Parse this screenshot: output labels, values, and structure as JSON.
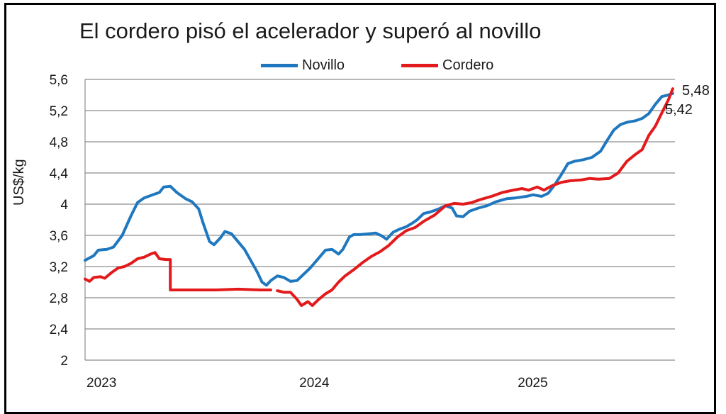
{
  "chart_data": {
    "type": "line",
    "title": "El cordero pisó el acelerador y superó al novillo",
    "ylabel": "US$/kg",
    "xlabel": "",
    "ylim": [
      2,
      5.6
    ],
    "yticks": [
      "5,6",
      "5,2",
      "4,8",
      "4,4",
      "4",
      "3,6",
      "3,2",
      "2,8",
      "2,4",
      "2"
    ],
    "xticks": [
      "2023",
      "2024",
      "2025"
    ],
    "xlim": [
      2023.0,
      2025.7
    ],
    "grid": "horizontal",
    "legend_position": "top",
    "series": [
      {
        "name": "Novillo",
        "color": "#1f78bf",
        "points": [
          [
            2023.0,
            3.28
          ],
          [
            2023.04,
            3.34
          ],
          [
            2023.06,
            3.41
          ],
          [
            2023.1,
            3.42
          ],
          [
            2023.13,
            3.45
          ],
          [
            2023.17,
            3.6
          ],
          [
            2023.21,
            3.85
          ],
          [
            2023.24,
            4.02
          ],
          [
            2023.27,
            4.08
          ],
          [
            2023.31,
            4.12
          ],
          [
            2023.34,
            4.15
          ],
          [
            2023.36,
            4.22
          ],
          [
            2023.39,
            4.23
          ],
          [
            2023.42,
            4.15
          ],
          [
            2023.46,
            4.07
          ],
          [
            2023.49,
            4.03
          ],
          [
            2023.52,
            3.94
          ],
          [
            2023.54,
            3.76
          ],
          [
            2023.57,
            3.52
          ],
          [
            2023.59,
            3.48
          ],
          [
            2023.62,
            3.57
          ],
          [
            2023.64,
            3.65
          ],
          [
            2023.67,
            3.62
          ],
          [
            2023.7,
            3.52
          ],
          [
            2023.73,
            3.42
          ],
          [
            2023.76,
            3.27
          ],
          [
            2023.79,
            3.12
          ],
          [
            2023.81,
            3.0
          ],
          [
            2023.83,
            2.96
          ],
          [
            2023.85,
            3.02
          ],
          [
            2023.88,
            3.08
          ],
          [
            2023.91,
            3.06
          ],
          [
            2023.94,
            3.01
          ],
          [
            2023.97,
            3.02
          ],
          [
            2024.0,
            3.1
          ],
          [
            2024.03,
            3.18
          ],
          [
            2024.07,
            3.31
          ],
          [
            2024.1,
            3.41
          ],
          [
            2024.13,
            3.42
          ],
          [
            2024.16,
            3.36
          ],
          [
            2024.18,
            3.42
          ],
          [
            2024.21,
            3.58
          ],
          [
            2024.23,
            3.61
          ],
          [
            2024.26,
            3.61
          ],
          [
            2024.3,
            3.62
          ],
          [
            2024.33,
            3.63
          ],
          [
            2024.36,
            3.59
          ],
          [
            2024.38,
            3.55
          ],
          [
            2024.41,
            3.64
          ],
          [
            2024.44,
            3.68
          ],
          [
            2024.47,
            3.71
          ],
          [
            2024.5,
            3.76
          ],
          [
            2024.52,
            3.8
          ],
          [
            2024.55,
            3.88
          ],
          [
            2024.58,
            3.9
          ],
          [
            2024.62,
            3.94
          ],
          [
            2024.65,
            3.98
          ],
          [
            2024.68,
            3.95
          ],
          [
            2024.7,
            3.85
          ],
          [
            2024.73,
            3.84
          ],
          [
            2024.76,
            3.91
          ],
          [
            2024.8,
            3.95
          ],
          [
            2024.84,
            3.98
          ],
          [
            2024.88,
            4.03
          ],
          [
            2024.93,
            4.07
          ],
          [
            2024.97,
            4.08
          ],
          [
            2025.02,
            4.1
          ],
          [
            2025.05,
            4.12
          ],
          [
            2025.09,
            4.1
          ],
          [
            2025.12,
            4.14
          ],
          [
            2025.15,
            4.25
          ],
          [
            2025.18,
            4.38
          ],
          [
            2025.21,
            4.52
          ],
          [
            2025.24,
            4.55
          ],
          [
            2025.28,
            4.57
          ],
          [
            2025.32,
            4.6
          ],
          [
            2025.36,
            4.68
          ],
          [
            2025.39,
            4.82
          ],
          [
            2025.42,
            4.95
          ],
          [
            2025.45,
            5.02
          ],
          [
            2025.48,
            5.05
          ],
          [
            2025.52,
            5.07
          ],
          [
            2025.55,
            5.1
          ],
          [
            2025.58,
            5.16
          ],
          [
            2025.61,
            5.28
          ],
          [
            2025.64,
            5.38
          ],
          [
            2025.67,
            5.4
          ],
          [
            2025.69,
            5.42
          ]
        ]
      },
      {
        "name": "Cordero",
        "color": "#e31a1c",
        "segments": [
          [
            [
              2023.0,
              3.04
            ],
            [
              2023.02,
              3.01
            ],
            [
              2023.04,
              3.06
            ],
            [
              2023.07,
              3.07
            ],
            [
              2023.09,
              3.05
            ],
            [
              2023.12,
              3.12
            ],
            [
              2023.15,
              3.18
            ],
            [
              2023.18,
              3.2
            ],
            [
              2023.21,
              3.24
            ],
            [
              2023.24,
              3.3
            ],
            [
              2023.27,
              3.32
            ],
            [
              2023.3,
              3.36
            ],
            [
              2023.32,
              3.38
            ],
            [
              2023.34,
              3.3
            ],
            [
              2023.37,
              3.29
            ],
            [
              2023.39,
              3.29
            ],
            [
              2023.39,
              2.9
            ],
            [
              2023.5,
              2.9
            ],
            [
              2023.6,
              2.9
            ],
            [
              2023.7,
              2.91
            ],
            [
              2023.8,
              2.9
            ],
            [
              2023.85,
              2.9
            ]
          ],
          [
            [
              2023.88,
              2.89
            ],
            [
              2023.91,
              2.87
            ],
            [
              2023.94,
              2.87
            ],
            [
              2023.97,
              2.78
            ],
            [
              2023.99,
              2.7
            ],
            [
              2024.02,
              2.75
            ],
            [
              2024.04,
              2.7
            ],
            [
              2024.07,
              2.78
            ],
            [
              2024.1,
              2.85
            ],
            [
              2024.13,
              2.9
            ],
            [
              2024.16,
              3.0
            ],
            [
              2024.19,
              3.08
            ],
            [
              2024.23,
              3.16
            ],
            [
              2024.27,
              3.25
            ],
            [
              2024.31,
              3.33
            ],
            [
              2024.35,
              3.39
            ],
            [
              2024.39,
              3.47
            ],
            [
              2024.43,
              3.58
            ],
            [
              2024.47,
              3.66
            ],
            [
              2024.51,
              3.7
            ],
            [
              2024.55,
              3.78
            ],
            [
              2024.6,
              3.86
            ],
            [
              2024.65,
              3.98
            ],
            [
              2024.69,
              4.01
            ],
            [
              2024.73,
              4.0
            ],
            [
              2024.77,
              4.02
            ],
            [
              2024.81,
              4.06
            ],
            [
              2024.86,
              4.1
            ],
            [
              2024.91,
              4.15
            ],
            [
              2024.96,
              4.18
            ],
            [
              2025.0,
              4.2
            ],
            [
              2025.03,
              4.18
            ],
            [
              2025.07,
              4.22
            ],
            [
              2025.1,
              4.18
            ],
            [
              2025.14,
              4.24
            ],
            [
              2025.18,
              4.28
            ],
            [
              2025.22,
              4.3
            ],
            [
              2025.27,
              4.31
            ],
            [
              2025.31,
              4.33
            ],
            [
              2025.35,
              4.32
            ],
            [
              2025.4,
              4.33
            ],
            [
              2025.44,
              4.4
            ],
            [
              2025.48,
              4.55
            ],
            [
              2025.52,
              4.64
            ],
            [
              2025.55,
              4.7
            ],
            [
              2025.58,
              4.88
            ],
            [
              2025.61,
              5.0
            ],
            [
              2025.64,
              5.17
            ],
            [
              2025.67,
              5.34
            ],
            [
              2025.69,
              5.48
            ]
          ]
        ]
      }
    ],
    "annotations": [
      {
        "text": "5,48",
        "series": "Cordero"
      },
      {
        "text": "5,42",
        "series": "Novillo"
      }
    ]
  }
}
